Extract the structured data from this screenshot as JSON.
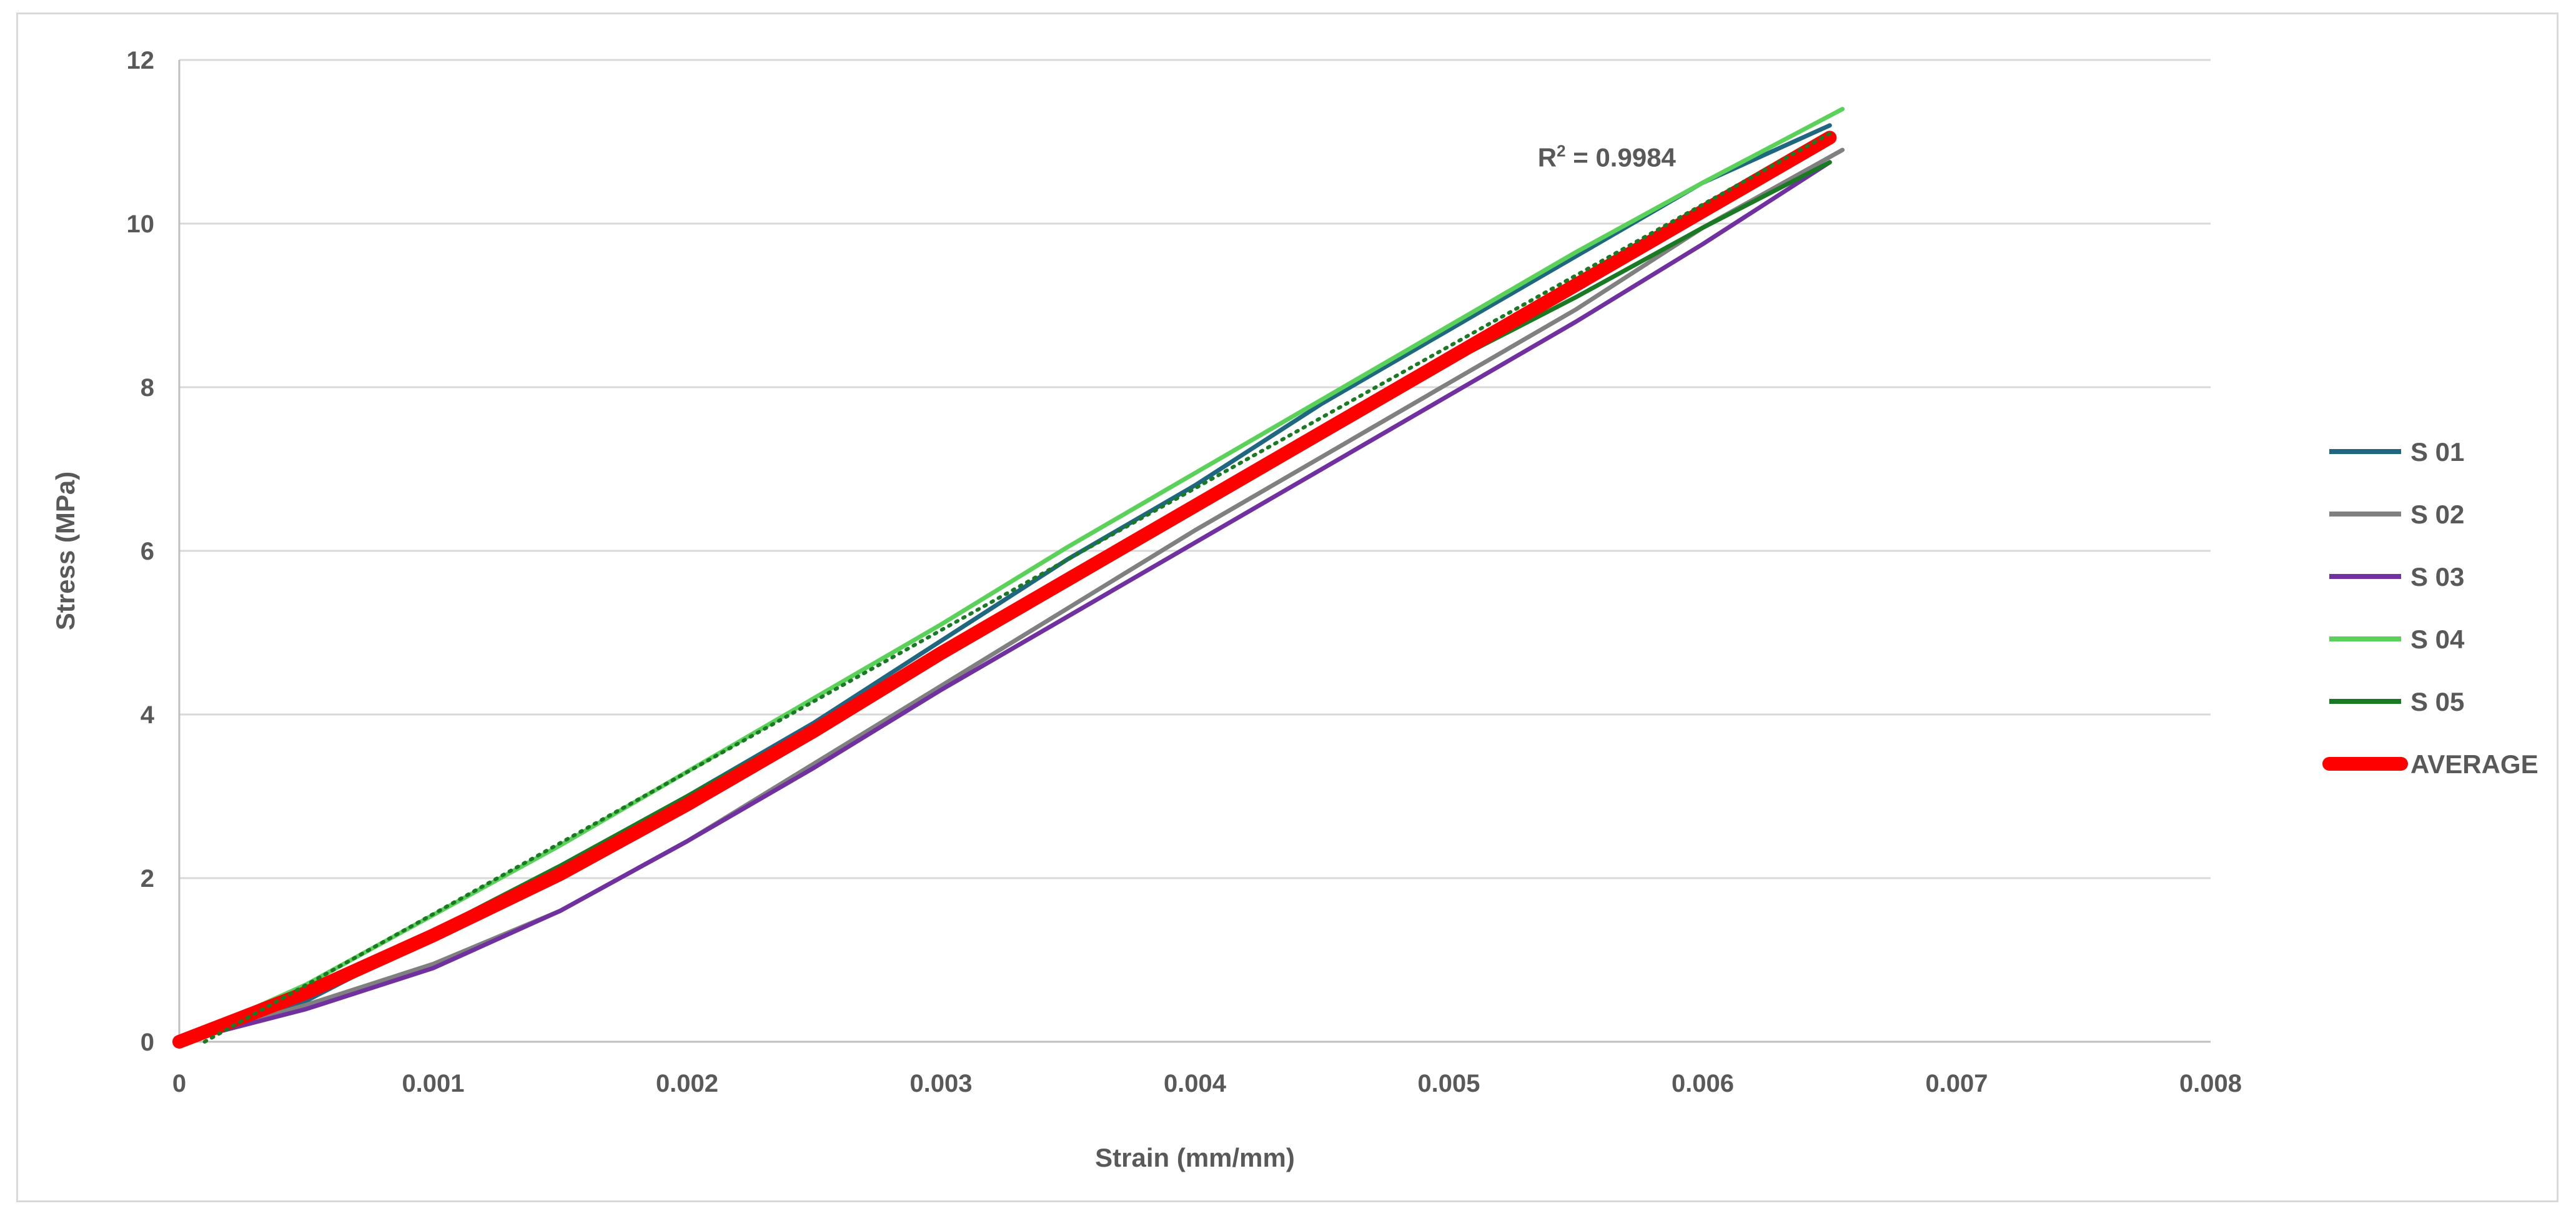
{
  "chart_data": {
    "type": "line",
    "title": "",
    "xlabel": "Strain (mm/mm)",
    "ylabel": "Stress (MPa)",
    "xlim": [
      0,
      0.008
    ],
    "ylim": [
      0,
      12
    ],
    "x_ticks": [
      "0",
      "0.001",
      "0.002",
      "0.003",
      "0.004",
      "0.005",
      "0.006",
      "0.007",
      "0.008"
    ],
    "y_ticks": [
      "0",
      "2",
      "4",
      "6",
      "8",
      "10",
      "12"
    ],
    "grid": "horizontal",
    "legend_position": "right",
    "series": [
      {
        "name": "S 01",
        "color": "#1f6680",
        "x": [
          0,
          0.0005,
          0.001,
          0.0015,
          0.002,
          0.0025,
          0.003,
          0.0035,
          0.004,
          0.0045,
          0.005,
          0.0055,
          0.006,
          0.0065
        ],
        "y": [
          0,
          0.5,
          1.3,
          2.1,
          3.0,
          3.9,
          4.9,
          5.9,
          6.8,
          7.8,
          8.7,
          9.6,
          10.5,
          11.2
        ]
      },
      {
        "name": "S 02",
        "color": "#808080",
        "x": [
          0,
          0.0005,
          0.001,
          0.0015,
          0.002,
          0.0025,
          0.003,
          0.0035,
          0.004,
          0.0045,
          0.005,
          0.0055,
          0.006,
          0.00655
        ],
        "y": [
          0,
          0.45,
          0.95,
          1.6,
          2.45,
          3.4,
          4.35,
          5.3,
          6.25,
          7.15,
          8.05,
          8.95,
          9.95,
          10.9
        ]
      },
      {
        "name": "S 03",
        "color": "#7030a0",
        "x": [
          0,
          0.0005,
          0.001,
          0.0015,
          0.002,
          0.0025,
          0.003,
          0.0035,
          0.004,
          0.0045,
          0.005,
          0.0055,
          0.006,
          0.0065
        ],
        "y": [
          0,
          0.4,
          0.9,
          1.6,
          2.45,
          3.35,
          4.3,
          5.2,
          6.1,
          7.0,
          7.9,
          8.8,
          9.75,
          10.75
        ]
      },
      {
        "name": "S 04",
        "color": "#5ad25a",
        "x": [
          0,
          0.0005,
          0.001,
          0.0015,
          0.002,
          0.0025,
          0.003,
          0.0035,
          0.004,
          0.0045,
          0.005,
          0.0055,
          0.006,
          0.00655
        ],
        "y": [
          0,
          0.7,
          1.55,
          2.4,
          3.3,
          4.2,
          5.1,
          6.05,
          6.95,
          7.85,
          8.75,
          9.65,
          10.5,
          11.4
        ]
      },
      {
        "name": "S 05",
        "color": "#1a7a24",
        "x": [
          0,
          0.0005,
          0.001,
          0.0015,
          0.002,
          0.0025,
          0.003,
          0.0035,
          0.004,
          0.0045,
          0.005,
          0.0055,
          0.006,
          0.0065
        ],
        "y": [
          0,
          0.6,
          1.35,
          2.15,
          3.0,
          3.85,
          4.8,
          5.7,
          6.6,
          7.45,
          8.3,
          9.1,
          9.95,
          10.75
        ]
      },
      {
        "name": "AVERAGE",
        "color": "#ff0000",
        "x": [
          0,
          0.0005,
          0.001,
          0.0015,
          0.002,
          0.0025,
          0.003,
          0.0035,
          0.004,
          0.0045,
          0.005,
          0.0055,
          0.006,
          0.0065
        ],
        "y": [
          0,
          0.6,
          1.3,
          2.05,
          2.9,
          3.8,
          4.75,
          5.65,
          6.55,
          7.45,
          8.35,
          9.25,
          10.15,
          11.05
        ]
      }
    ],
    "trendline": {
      "style": "dotted",
      "color": "#1a7a24",
      "x": [
        0.0001,
        0.0065
      ],
      "y": [
        0,
        11.1
      ]
    },
    "annotation": {
      "text_base": "R",
      "text_sup": "2",
      "text_rest": " = 0.9984",
      "at": [
        0.00535,
        10.7
      ]
    }
  }
}
